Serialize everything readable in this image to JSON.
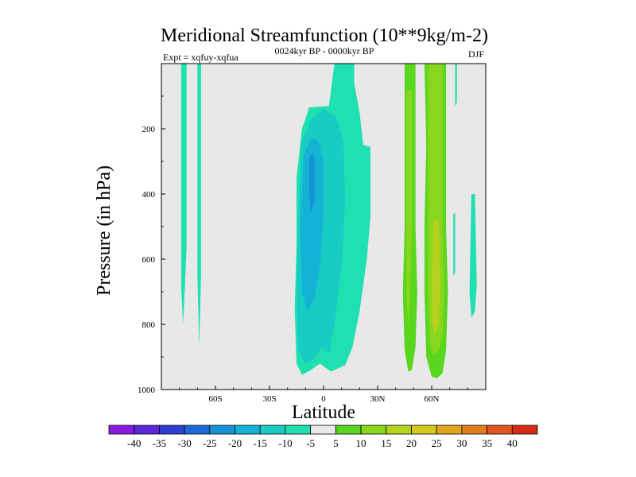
{
  "chart_data": {
    "type": "contour",
    "title": "Meridional Streamfunction (10**9kg/m-2)",
    "experiment_label": "Expt = xqfuy-xqfua",
    "period_label": "0024kyr BP - 0000kyr BP",
    "season_label": "DJF",
    "xlabel": "Latitude",
    "ylabel": "Pressure (in hPa)",
    "xlim": [
      -90,
      90
    ],
    "ylim": [
      1000,
      0
    ],
    "xticks": [
      {
        "value": -60,
        "label": "60S"
      },
      {
        "value": -30,
        "label": "30S"
      },
      {
        "value": 0,
        "label": "0"
      },
      {
        "value": 30,
        "label": "30N"
      },
      {
        "value": 60,
        "label": "60N"
      }
    ],
    "yticks": [
      {
        "value": 200,
        "label": "200"
      },
      {
        "value": 400,
        "label": "400"
      },
      {
        "value": 600,
        "label": "600"
      },
      {
        "value": 800,
        "label": "800"
      },
      {
        "value": 1000,
        "label": "1000"
      }
    ],
    "background_color": "#e8e8e8",
    "colorbar": {
      "levels": [
        "-40",
        "-35",
        "-30",
        "-25",
        "-20",
        "-15",
        "-10",
        "-5",
        "5",
        "10",
        "15",
        "20",
        "25",
        "30",
        "35",
        "40"
      ],
      "colors": [
        "#8a1ae0",
        "#5a28d8",
        "#2e3ed0",
        "#1d68d8",
        "#1592d8",
        "#14b2d4",
        "#18ccc4",
        "#1ee0b0",
        "#e8e8e8",
        "#5ad61e",
        "#8ad61e",
        "#b4d21e",
        "#d8c81e",
        "#e0a61e",
        "#e07e1e",
        "#e0561e",
        "#d82a14"
      ]
    },
    "regions": [
      {
        "name": "south-polar-band-a",
        "value": -7,
        "polygon": [
          [
            -79,
            0
          ],
          [
            -76,
            0
          ],
          [
            -76,
            560
          ],
          [
            -77,
            690
          ],
          [
            -78,
            800
          ],
          [
            -79,
            690
          ],
          [
            -79,
            560
          ]
        ]
      },
      {
        "name": "south-polar-band-b",
        "value": -7,
        "polygon": [
          [
            -70,
            0
          ],
          [
            -68,
            0
          ],
          [
            -68,
            650
          ],
          [
            -69,
            870
          ],
          [
            -70,
            650
          ]
        ]
      },
      {
        "name": "tropical-cell-outer",
        "value": -7,
        "polygon": [
          [
            -12,
            200
          ],
          [
            -8,
            135
          ],
          [
            3,
            130
          ],
          [
            6,
            0
          ],
          [
            17,
            0
          ],
          [
            17,
            60
          ],
          [
            20,
            150
          ],
          [
            22,
            250
          ],
          [
            26,
            255
          ],
          [
            26,
            470
          ],
          [
            24,
            600
          ],
          [
            20,
            760
          ],
          [
            16,
            870
          ],
          [
            12,
            925
          ],
          [
            8,
            935
          ],
          [
            4,
            945
          ],
          [
            -2,
            920
          ],
          [
            -7,
            940
          ],
          [
            -12,
            955
          ],
          [
            -15,
            920
          ],
          [
            -16,
            750
          ],
          [
            -15,
            560
          ],
          [
            -15,
            350
          ]
        ]
      },
      {
        "name": "tropical-cell-mid",
        "value": -12,
        "polygon": [
          [
            -12,
            240
          ],
          [
            -7,
            170
          ],
          [
            0,
            140
          ],
          [
            7,
            165
          ],
          [
            11,
            240
          ],
          [
            12,
            420
          ],
          [
            10,
            620
          ],
          [
            6,
            800
          ],
          [
            3,
            890
          ],
          [
            -1,
            870
          ],
          [
            -5,
            905
          ],
          [
            -10,
            920
          ],
          [
            -14,
            880
          ],
          [
            -15,
            700
          ],
          [
            -14,
            480
          ],
          [
            -13,
            330
          ]
        ]
      },
      {
        "name": "tropical-cell-inner",
        "value": -17,
        "polygon": [
          [
            -11,
            280
          ],
          [
            -7,
            230
          ],
          [
            -3,
            235
          ],
          [
            0,
            300
          ],
          [
            0,
            460
          ],
          [
            -2,
            620
          ],
          [
            -5,
            720
          ],
          [
            -9,
            760
          ],
          [
            -12,
            700
          ],
          [
            -13,
            500
          ]
        ]
      },
      {
        "name": "tropical-cell-core",
        "value": -22,
        "polygon": [
          [
            -8,
            290
          ],
          [
            -6,
            270
          ],
          [
            -5,
            300
          ],
          [
            -5,
            420
          ],
          [
            -7,
            460
          ],
          [
            -8,
            400
          ]
        ]
      },
      {
        "name": "north-midlat-band",
        "value": 7,
        "polygon": [
          [
            45,
            0
          ],
          [
            51,
            0
          ],
          [
            51,
            500
          ],
          [
            52,
            700
          ],
          [
            51,
            870
          ],
          [
            49,
            940
          ],
          [
            47,
            945
          ],
          [
            45,
            880
          ],
          [
            44,
            700
          ],
          [
            45,
            500
          ]
        ]
      },
      {
        "name": "north-midlat-band-inner",
        "value": 12,
        "polygon": [
          [
            46,
            80
          ],
          [
            49,
            80
          ],
          [
            49,
            500
          ],
          [
            48,
            700
          ],
          [
            47,
            820
          ],
          [
            46,
            700
          ],
          [
            46,
            400
          ]
        ]
      },
      {
        "name": "north-highlat-band",
        "value": 7,
        "polygon": [
          [
            56,
            0
          ],
          [
            68,
            0
          ],
          [
            68,
            500
          ],
          [
            69,
            700
          ],
          [
            68,
            880
          ],
          [
            66,
            950
          ],
          [
            63,
            965
          ],
          [
            60,
            960
          ],
          [
            57,
            900
          ],
          [
            56,
            700
          ],
          [
            56,
            500
          ],
          [
            57,
            250
          ]
        ]
      },
      {
        "name": "north-highlat-band-inner",
        "value": 12,
        "polygon": [
          [
            58,
            0
          ],
          [
            66,
            0
          ],
          [
            66,
            500
          ],
          [
            67,
            700
          ],
          [
            66,
            830
          ],
          [
            64,
            880
          ],
          [
            61,
            895
          ],
          [
            59,
            860
          ],
          [
            58,
            700
          ],
          [
            58,
            350
          ]
        ]
      },
      {
        "name": "north-highlat-band-core",
        "value": 17,
        "polygon": [
          [
            61,
            480
          ],
          [
            64,
            480
          ],
          [
            65,
            650
          ],
          [
            64,
            800
          ],
          [
            62,
            830
          ],
          [
            60,
            800
          ],
          [
            60,
            650
          ]
        ]
      },
      {
        "name": "north-polar-thin-a",
        "value": -7,
        "polygon": [
          [
            73,
            0
          ],
          [
            74,
            0
          ],
          [
            74,
            120
          ],
          [
            73,
            130
          ]
        ]
      },
      {
        "name": "north-polar-thin-b",
        "value": -7,
        "polygon": [
          [
            72,
            460
          ],
          [
            73,
            460
          ],
          [
            73,
            640
          ],
          [
            72,
            650
          ]
        ]
      },
      {
        "name": "north-polar-thin-c",
        "value": -7,
        "polygon": [
          [
            82,
            400
          ],
          [
            84,
            400
          ],
          [
            85,
            680
          ],
          [
            84,
            760
          ],
          [
            82,
            780
          ],
          [
            81,
            700
          ]
        ]
      }
    ]
  }
}
